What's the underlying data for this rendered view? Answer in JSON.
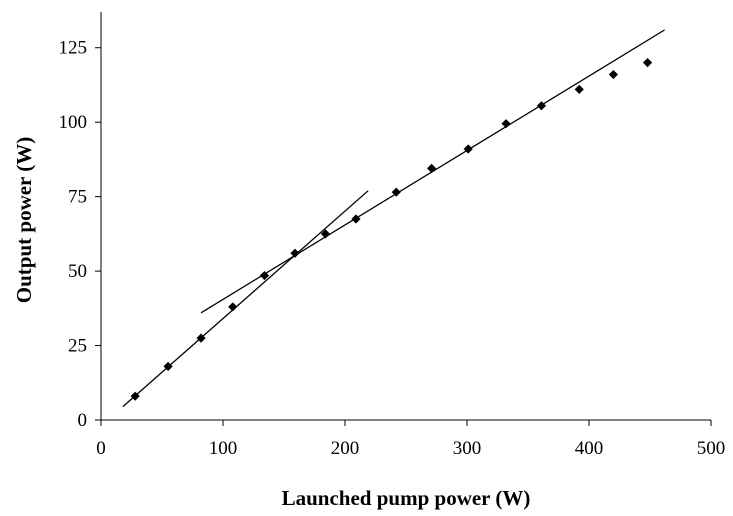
{
  "chart_data": {
    "type": "scatter",
    "title": "",
    "xlabel": "Launched pump power (W)",
    "ylabel": "Output power (W)",
    "xlim": [
      0,
      500
    ],
    "ylim": [
      0,
      137
    ],
    "x_ticks": [
      0,
      100,
      200,
      300,
      400,
      500
    ],
    "x_tick_labels": [
      "0",
      "100",
      "200",
      "300",
      "400",
      "500"
    ],
    "y_ticks": [
      0,
      25,
      50,
      75,
      100,
      125
    ],
    "y_tick_labels": [
      "0",
      "25",
      "50",
      "75",
      "100",
      "125"
    ],
    "grid": false,
    "legend": "none",
    "marker_shape": "diamond",
    "color": "#000000",
    "series": [
      {
        "type": "scatter",
        "x": [
          28,
          55,
          82,
          108,
          134,
          159,
          184,
          209,
          242,
          271,
          301,
          332,
          361,
          392,
          420,
          448
        ],
        "y": [
          8,
          18,
          27.5,
          38,
          48.5,
          56,
          62.5,
          67.5,
          76.5,
          84.5,
          91,
          99.5,
          105.5,
          111,
          116,
          120
        ]
      }
    ],
    "fit_lines": [
      {
        "x": [
          18,
          219
        ],
        "y": [
          4.5,
          77
        ]
      },
      {
        "x": [
          82,
          462
        ],
        "y": [
          36,
          131
        ]
      }
    ]
  }
}
